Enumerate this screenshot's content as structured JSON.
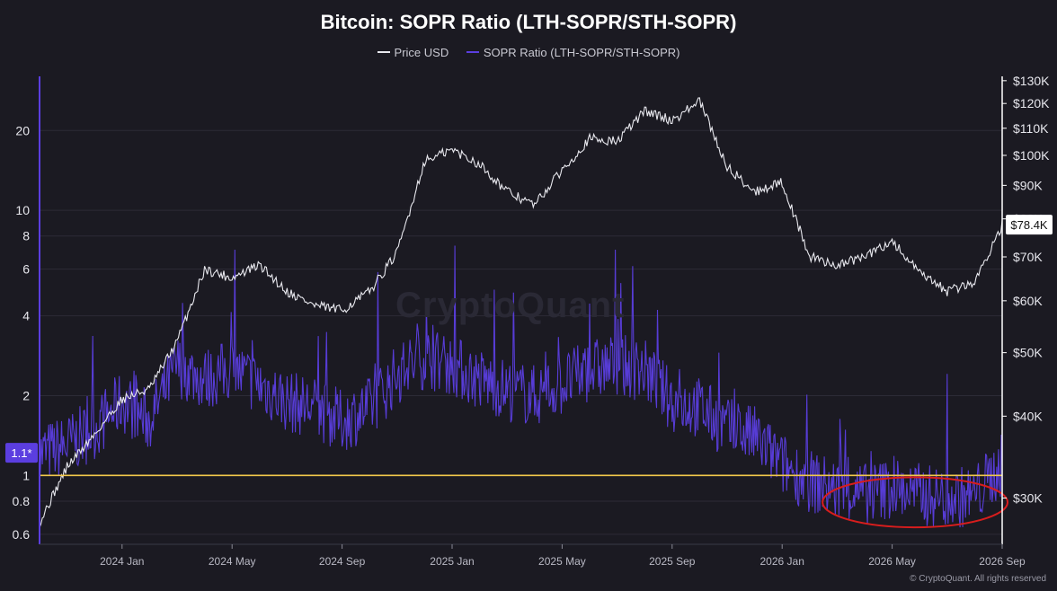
{
  "chart_data": {
    "type": "line",
    "title": "Bitcoin: SOPR Ratio (LTH-SOPR/STH-SOPR)",
    "watermark": "CryptoQuant",
    "copyright": "© CryptoQuant. All rights reserved",
    "x_ticks": [
      "2024 Jan",
      "2024 May",
      "2024 Sep",
      "2025 Jan",
      "2025 May",
      "2025 Sep",
      "2026 Jan",
      "2026 May",
      "2026 Sep"
    ],
    "x_range": [
      "2023-10",
      "2026-09"
    ],
    "left_axis": {
      "scale": "log",
      "ticks": [
        "0.6",
        "0.8",
        "1",
        "2",
        "4",
        "6",
        "8",
        "10",
        "20"
      ],
      "tick_values": [
        0.6,
        0.8,
        1,
        2,
        4,
        6,
        8,
        10,
        20
      ],
      "range": [
        0.55,
        32
      ],
      "current_badge": "1.1*"
    },
    "right_axis": {
      "scale": "log",
      "ticks": [
        "$30K",
        "$40K",
        "$50K",
        "$60K",
        "$70K",
        "$80K",
        "$90K",
        "$100K",
        "$110K",
        "$120K",
        "$130K"
      ],
      "tick_values": [
        30000,
        40000,
        50000,
        60000,
        70000,
        80000,
        90000,
        100000,
        110000,
        120000,
        130000
      ],
      "range": [
        25500,
        132000
      ],
      "current_badge": "$78.4K"
    },
    "reference_line": {
      "value": 1,
      "color": "#f2c84b"
    },
    "grid": "horizontal",
    "series": [
      {
        "name": "Price USD",
        "axis": "right",
        "color": "#e8e8ee",
        "x": [
          "2023-10",
          "2023-11",
          "2023-12",
          "2024-01",
          "2024-02",
          "2024-03",
          "2024-04",
          "2024-05",
          "2024-06",
          "2024-07",
          "2024-08",
          "2024-09",
          "2024-10",
          "2024-11",
          "2024-12",
          "2025-01",
          "2025-02",
          "2025-03",
          "2025-04",
          "2025-05",
          "2025-06",
          "2025-07",
          "2025-08",
          "2025-09",
          "2025-10",
          "2025-11",
          "2025-12",
          "2026-01",
          "2026-02",
          "2026-03",
          "2026-04",
          "2026-05",
          "2026-06",
          "2026-07",
          "2026-08",
          "2026-09"
        ],
        "values": [
          27500,
          33500,
          37500,
          42500,
          44000,
          52000,
          67000,
          65000,
          68000,
          62000,
          59000,
          58000,
          62000,
          71000,
          98000,
          102000,
          97000,
          88000,
          84000,
          95000,
          106000,
          105000,
          117000,
          113000,
          121000,
          96000,
          88000,
          91000,
          70000,
          68000,
          70000,
          74000,
          66000,
          62000,
          64000,
          78400
        ]
      },
      {
        "name": "SOPR Ratio (LTH-SOPR/STH-SOPR)",
        "axis": "left",
        "color": "#5b3ee0",
        "x": [
          "2023-10",
          "2023-11",
          "2023-12",
          "2024-01",
          "2024-02",
          "2024-03",
          "2024-04",
          "2024-05",
          "2024-06",
          "2024-07",
          "2024-08",
          "2024-09",
          "2024-10",
          "2024-11",
          "2024-12",
          "2025-01",
          "2025-02",
          "2025-03",
          "2025-04",
          "2025-05",
          "2025-06",
          "2025-07",
          "2025-08",
          "2025-09",
          "2025-10",
          "2025-11",
          "2025-12",
          "2026-01",
          "2026-02",
          "2026-03",
          "2026-04",
          "2026-05",
          "2026-06",
          "2026-07",
          "2026-08",
          "2026-09"
        ],
        "values": [
          1.2,
          1.3,
          1.5,
          1.9,
          1.6,
          2.6,
          2.3,
          2.5,
          2.2,
          1.9,
          1.8,
          1.6,
          1.8,
          2.4,
          2.8,
          2.6,
          2.3,
          2.1,
          2.0,
          2.2,
          2.5,
          2.6,
          2.5,
          1.9,
          1.8,
          1.5,
          1.4,
          1.1,
          0.95,
          0.88,
          0.85,
          0.9,
          0.85,
          0.82,
          0.84,
          1.1
        ]
      }
    ],
    "annotation": {
      "type": "ellipse",
      "color": "#d81d1d",
      "x_range": [
        "2026-01",
        "2026-09"
      ],
      "y_range": [
        0.7,
        1.0
      ],
      "axis": "left"
    }
  }
}
